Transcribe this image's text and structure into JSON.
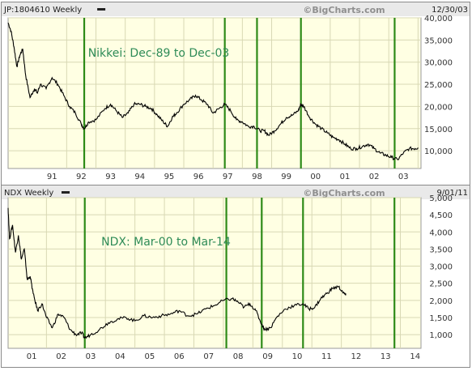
{
  "chart_data": [
    {
      "type": "line",
      "symbol_label": "JP:1804610 Weekly",
      "watermark": "©BigCharts.com",
      "date_label": "12/30/03",
      "annotation": "Nikkei: Dec-89 to Dec-03",
      "xlim": [
        1990.0,
        2004.1
      ],
      "ylim": [
        6000,
        40000
      ],
      "y_ticks": [
        10000,
        15000,
        20000,
        25000,
        30000,
        35000,
        40000
      ],
      "y_tick_labels": [
        "10,000",
        "15,000",
        "20,000",
        "25,000",
        "30,000",
        "35,000",
        "40,000"
      ],
      "x_tick_labels": [
        {
          "label": "91",
          "x": 1991.5
        },
        {
          "label": "92",
          "x": 1992.5
        },
        {
          "label": "93",
          "x": 1993.5
        },
        {
          "label": "94",
          "x": 1994.5
        },
        {
          "label": "95",
          "x": 1995.5
        },
        {
          "label": "96",
          "x": 1996.5
        },
        {
          "label": "97",
          "x": 1997.5
        },
        {
          "label": "98",
          "x": 1998.5
        },
        {
          "label": "99",
          "x": 1999.5
        },
        {
          "label": "00",
          "x": 2000.5
        },
        {
          "label": "01",
          "x": 2001.5
        },
        {
          "label": "02",
          "x": 2002.5
        },
        {
          "label": "03",
          "x": 2003.5
        }
      ],
      "vlines": [
        1992.6,
        1997.4,
        1998.5,
        2000.0,
        2003.2
      ],
      "grid": true,
      "series": [
        {
          "x": [
            1990.0,
            1990.1,
            1990.2,
            1990.3,
            1990.4,
            1990.5,
            1990.6,
            1990.75,
            1990.9,
            1991.0,
            1991.1,
            1991.3,
            1991.5,
            1991.7,
            1991.9,
            1992.1,
            1992.3,
            1992.5,
            1992.6,
            1992.75,
            1993.0,
            1993.3,
            1993.5,
            1993.7,
            1993.9,
            1994.1,
            1994.3,
            1994.5,
            1994.7,
            1994.9,
            1995.1,
            1995.3,
            1995.45,
            1995.6,
            1995.75,
            1996.0,
            1996.2,
            1996.4,
            1996.6,
            1996.8,
            1997.0,
            1997.2,
            1997.4,
            1997.6,
            1997.8,
            1998.0,
            1998.2,
            1998.4,
            1998.6,
            1998.75,
            1998.9,
            1999.1,
            1999.3,
            1999.5,
            1999.7,
            1999.9,
            2000.0,
            2000.1,
            2000.3,
            2000.5,
            2000.7,
            2000.9,
            2001.1,
            2001.3,
            2001.5,
            2001.7,
            2001.9,
            2002.1,
            2002.3,
            2002.5,
            2002.7,
            2002.9,
            2003.1,
            2003.3,
            2003.5,
            2003.7,
            2003.9,
            2004.0
          ],
          "y": [
            38900,
            37000,
            33500,
            29000,
            31500,
            33000,
            27000,
            22000,
            24000,
            23000,
            25000,
            24000,
            26500,
            25000,
            22500,
            20000,
            18500,
            16000,
            15000,
            16500,
            17000,
            19500,
            20500,
            19000,
            17500,
            18500,
            20500,
            20500,
            20000,
            19500,
            18000,
            16500,
            15500,
            17500,
            18500,
            20500,
            21500,
            22500,
            21500,
            20500,
            18500,
            19500,
            20500,
            19000,
            17000,
            16500,
            15500,
            15500,
            14500,
            14500,
            13500,
            14500,
            16000,
            17500,
            18000,
            19000,
            20500,
            20000,
            17500,
            16000,
            15000,
            14000,
            13000,
            12500,
            11500,
            10500,
            10500,
            11000,
            11500,
            10500,
            9500,
            9000,
            8500,
            8000,
            9500,
            10500,
            10500,
            10700
          ]
        }
      ]
    },
    {
      "type": "line",
      "symbol_label": "NDX Weekly",
      "watermark": "©BigCharts.com",
      "date_label": "9/01/11",
      "annotation": "NDX: Mar-00 to Mar-14",
      "xlim": [
        2000.2,
        2014.2
      ],
      "ylim": [
        600,
        5000
      ],
      "y_ticks": [
        1000,
        1500,
        2000,
        2500,
        3000,
        3500,
        4000,
        4500,
        5000
      ],
      "y_tick_labels": [
        "1,000",
        "1,500",
        "2,000",
        "2,500",
        "3,000",
        "3,500",
        "4,000",
        "4,500",
        "5,000"
      ],
      "x_tick_labels": [
        {
          "label": "01",
          "x": 2001.0
        },
        {
          "label": "02",
          "x": 2002.0
        },
        {
          "label": "03",
          "x": 2003.0
        },
        {
          "label": "04",
          "x": 2004.0
        },
        {
          "label": "05",
          "x": 2005.0
        },
        {
          "label": "06",
          "x": 2006.0
        },
        {
          "label": "07",
          "x": 2007.0
        },
        {
          "label": "08",
          "x": 2008.0
        },
        {
          "label": "09",
          "x": 2009.0
        },
        {
          "label": "10",
          "x": 2010.0
        },
        {
          "label": "11",
          "x": 2011.0
        },
        {
          "label": "12",
          "x": 2012.0
        },
        {
          "label": "13",
          "x": 2013.0
        },
        {
          "label": "14",
          "x": 2014.0
        }
      ],
      "vlines": [
        2002.8,
        2007.6,
        2008.8,
        2010.2,
        2013.3
      ],
      "grid": true,
      "series": [
        {
          "x": [
            2000.2,
            2000.25,
            2000.35,
            2000.45,
            2000.55,
            2000.65,
            2000.75,
            2000.85,
            2000.95,
            2001.05,
            2001.2,
            2001.35,
            2001.5,
            2001.7,
            2001.9,
            2002.1,
            2002.3,
            2002.5,
            2002.7,
            2002.8,
            2003.0,
            2003.3,
            2003.6,
            2003.9,
            2004.2,
            2004.5,
            2004.8,
            2005.1,
            2005.4,
            2005.7,
            2006.0,
            2006.3,
            2006.6,
            2006.9,
            2007.2,
            2007.5,
            2007.8,
            2008.0,
            2008.2,
            2008.4,
            2008.6,
            2008.8,
            2008.9,
            2009.1,
            2009.3,
            2009.6,
            2009.9,
            2010.2,
            2010.4,
            2010.6,
            2010.8,
            2011.0,
            2011.2,
            2011.4,
            2011.6,
            2011.65
          ],
          "y": [
            4700,
            3800,
            4200,
            3400,
            3900,
            3200,
            3500,
            2600,
            2700,
            2200,
            1700,
            1900,
            1500,
            1200,
            1600,
            1500,
            1150,
            1000,
            1050,
            900,
            1000,
            1150,
            1350,
            1450,
            1500,
            1400,
            1550,
            1500,
            1550,
            1600,
            1700,
            1550,
            1600,
            1750,
            1850,
            2000,
            2050,
            1950,
            1800,
            1900,
            1700,
            1300,
            1150,
            1200,
            1500,
            1750,
            1850,
            1900,
            1750,
            1800,
            2050,
            2200,
            2350,
            2400,
            2200,
            2150
          ]
        }
      ]
    }
  ]
}
